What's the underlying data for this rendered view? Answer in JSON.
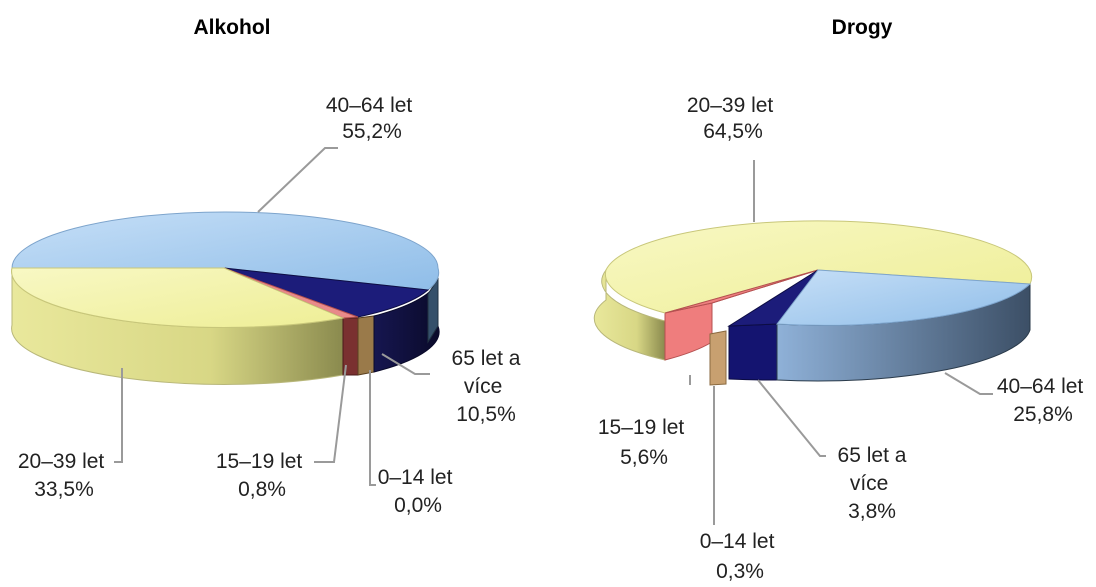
{
  "chart_data": [
    {
      "type": "pie",
      "title": "Alkohol",
      "slices": [
        {
          "label": "40–64 let",
          "value": 55.2,
          "display": "55,2%",
          "color": "#a9cdf3"
        },
        {
          "label": "20–39 let",
          "value": 33.5,
          "display": "33,5%",
          "color": "#f4f3a8"
        },
        {
          "label": "15–19 let",
          "value": 0.8,
          "display": "0,8%",
          "color": "#e88080"
        },
        {
          "label": "0–14 let",
          "value": 0.0,
          "display": "0,0%",
          "color": "#d8a878"
        },
        {
          "label": "65 let a více",
          "value": 10.5,
          "display": "10,5%",
          "color": "#1c1c7a"
        }
      ]
    },
    {
      "type": "pie",
      "title": "Drogy",
      "slices": [
        {
          "label": "20–39 let",
          "value": 64.5,
          "display": "64,5%",
          "color": "#f4f3a8"
        },
        {
          "label": "40–64 let",
          "value": 25.8,
          "display": "25,8%",
          "color": "#a9cdf3"
        },
        {
          "label": "65 let a více",
          "value": 3.8,
          "display": "3,8%",
          "color": "#1c1c7a"
        },
        {
          "label": "0–14 let",
          "value": 0.3,
          "display": "0,3%",
          "color": "#d8a878"
        },
        {
          "label": "15–19 let",
          "value": 5.6,
          "display": "5,6%",
          "color": "#e88080"
        }
      ]
    }
  ]
}
